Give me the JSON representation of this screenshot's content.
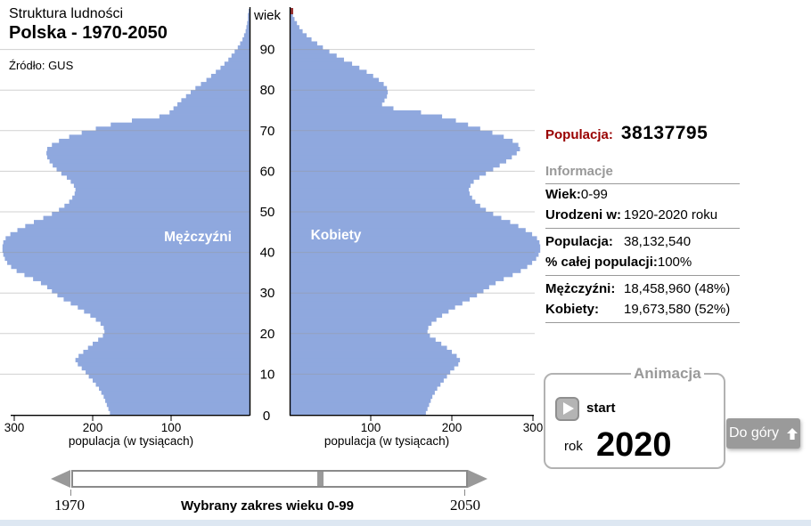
{
  "header": {
    "line1": "Struktura ludności",
    "line2": "Polska - 1970-2050",
    "source": "Źródło: GUS"
  },
  "chart_data": {
    "type": "bar",
    "subtype": "population-pyramid",
    "title": "Polska - 1970-2050",
    "age_axis_label": "wiek",
    "value_axis_label": "populacja (w tysiącach)",
    "age_range": [
      0,
      99
    ],
    "age_ticks": [
      10,
      20,
      30,
      40,
      50,
      60,
      70,
      80,
      90
    ],
    "age_zero_label": "0",
    "value_ticks": [
      100,
      200,
      300
    ],
    "xlim_each_side": [
      0,
      300
    ],
    "units": "tysiące osób",
    "series": [
      {
        "name": "Mężczyźni",
        "side": "left",
        "values": [
          178,
          180,
          182,
          184,
          186,
          189,
          192,
          196,
          200,
          205,
          209,
          214,
          219,
          222,
          218,
          212,
          206,
          200,
          193,
          187,
          185,
          186,
          190,
          196,
          203,
          211,
          219,
          228,
          237,
          245,
          252,
          258,
          266,
          276,
          287,
          297,
          304,
          309,
          312,
          314,
          315,
          315,
          314,
          311,
          305,
          296,
          286,
          275,
          263,
          252,
          243,
          236,
          230,
          226,
          223,
          222,
          224,
          228,
          233,
          240,
          246,
          251,
          255,
          258,
          259,
          258,
          252,
          243,
          230,
          214,
          196,
          177,
          150,
          115,
          102,
          97,
          92,
          87,
          81,
          75,
          69,
          62,
          55,
          49,
          43,
          37,
          32,
          27,
          23,
          19,
          15,
          12,
          9,
          7,
          5,
          4,
          3,
          2,
          2,
          1
        ]
      },
      {
        "name": "Kobiety",
        "side": "right",
        "values": [
          168,
          170,
          172,
          174,
          176,
          179,
          182,
          186,
          190,
          194,
          198,
          203,
          208,
          210,
          206,
          200,
          194,
          187,
          180,
          173,
          170,
          171,
          175,
          181,
          188,
          196,
          204,
          213,
          222,
          231,
          239,
          246,
          254,
          264,
          275,
          285,
          293,
          299,
          304,
          307,
          309,
          309,
          308,
          305,
          299,
          291,
          282,
          272,
          261,
          251,
          242,
          235,
          229,
          225,
          222,
          221,
          223,
          227,
          234,
          242,
          251,
          259,
          267,
          274,
          280,
          284,
          282,
          275,
          264,
          250,
          235,
          220,
          205,
          188,
          162,
          128,
          114,
          117,
          120,
          121,
          120,
          116,
          110,
          103,
          95,
          86,
          77,
          67,
          58,
          49,
          41,
          34,
          27,
          21,
          16,
          12,
          9,
          6,
          4,
          3
        ]
      }
    ],
    "highlight_top_bar": {
      "series": "Kobiety",
      "age": 99
    },
    "colors": {
      "bar": "#8fa8de",
      "highlight": "#993333",
      "grid": "#9a9a9a",
      "axis": "#000000"
    }
  },
  "info_panel": {
    "population_label": "Populacja:",
    "population_value": "38137795",
    "section_title": "Informacje",
    "age_label": "Wiek:",
    "age_value": "0-99",
    "born_label": "Urodzeni w:",
    "born_value": "1920-2020 roku",
    "pop2_label": "Populacja:",
    "pop2_value": "38,132,540",
    "pct_label": "% całej populacji:",
    "pct_value": "100%",
    "men_label": "Mężczyźni:",
    "men_value": "18,458,960 (48%)",
    "women_label": "Kobiety:",
    "women_value": "19,673,580 (52%)"
  },
  "animation": {
    "legend": "Animacja",
    "start_label": "start",
    "year_label": "rok",
    "year_value": "2020"
  },
  "top_button": {
    "label": "Do góry"
  },
  "slider": {
    "min_label": "1970",
    "max_label": "2050",
    "caption": "Wybrany zakres wieku 0-99"
  }
}
